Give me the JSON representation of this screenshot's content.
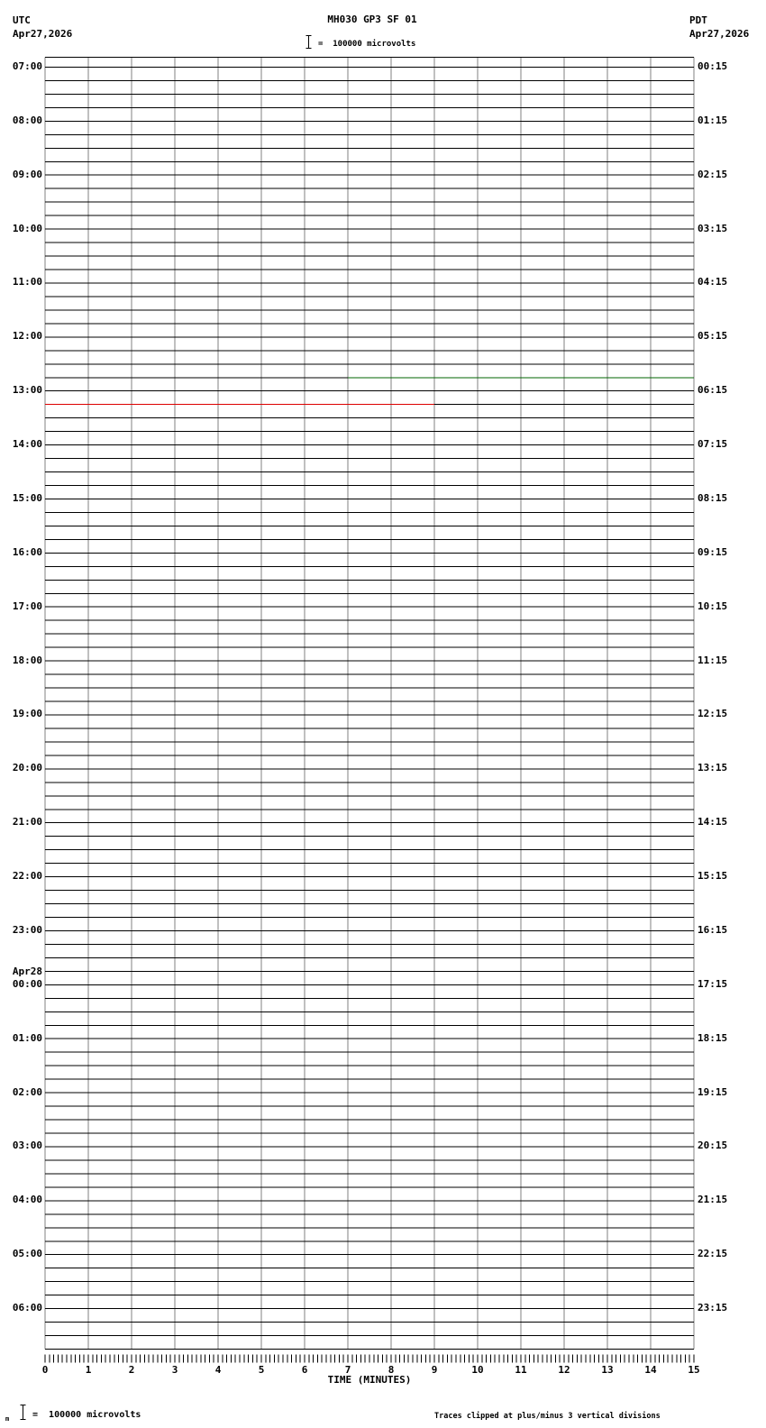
{
  "header": {
    "left_tz": "UTC",
    "left_date": "Apr27,2026",
    "title": "MH030 GP3 SF 01",
    "scale_text": "=  100000 microvolts",
    "right_tz": "PDT",
    "right_date": "Apr27,2026"
  },
  "footer": {
    "left_sub": "m",
    "left_text": "=  100000 microvolts",
    "right_text": "Traces clipped at plus/minus 3 vertical divisions"
  },
  "colors": {
    "background": "#ffffff",
    "grid_vertical": "#808080",
    "trace_black": "#000000",
    "segment_green": "#006400",
    "segment_red": "#dd0000"
  },
  "chart_data": {
    "type": "line",
    "subtype": "helicorder-webicorder",
    "title": "MH030 GP3 SF 01",
    "xlabel": "TIME (MINUTES)",
    "xlim": [
      0,
      15
    ],
    "x_ticks": [
      "0",
      "1",
      "2",
      "3",
      "4",
      "5",
      "6",
      "7",
      "8",
      "9",
      "10",
      "11",
      "12",
      "13",
      "14",
      "15"
    ],
    "minor_ticks_per_minute": 10,
    "minutes_per_row": 15,
    "num_rows": 96,
    "rows_per_hour": 4,
    "first_row_start_utc": "Apr27,2026 07:00",
    "last_row_start_utc": "Apr28,2026 06:45",
    "amplitude_scale": "1 vertical division = 100000 microvolts",
    "clipping_note": "Traces clipped at plus/minus 3 vertical divisions",
    "traces": "all 96 rows flat at baseline (no visible seismic activity)",
    "utc_labels": [
      {
        "text": "07:00"
      },
      {
        "text": "08:00"
      },
      {
        "text": "09:00"
      },
      {
        "text": "10:00"
      },
      {
        "text": "11:00"
      },
      {
        "text": "12:00"
      },
      {
        "text": "13:00"
      },
      {
        "text": "14:00"
      },
      {
        "text": "15:00"
      },
      {
        "text": "16:00"
      },
      {
        "text": "17:00"
      },
      {
        "text": "18:00"
      },
      {
        "text": "19:00"
      },
      {
        "text": "20:00"
      },
      {
        "text": "21:00"
      },
      {
        "text": "22:00"
      },
      {
        "text": "23:00"
      },
      {
        "text": "00:00",
        "prefix": "Apr28"
      },
      {
        "text": "01:00"
      },
      {
        "text": "02:00"
      },
      {
        "text": "03:00"
      },
      {
        "text": "04:00"
      },
      {
        "text": "05:00"
      },
      {
        "text": "06:00"
      }
    ],
    "pdt_labels": [
      "00:15",
      "01:15",
      "02:15",
      "03:15",
      "04:15",
      "05:15",
      "06:15",
      "07:15",
      "08:15",
      "09:15",
      "10:15",
      "11:15",
      "12:15",
      "13:15",
      "14:15",
      "15:15",
      "16:15",
      "17:15",
      "18:15",
      "19:15",
      "20:15",
      "21:15",
      "22:15",
      "23:15"
    ],
    "colored_segments": [
      {
        "row_index": 23,
        "row_start_utc": "12:45",
        "start_minute": 7,
        "end_minute": 15,
        "color": "#006400"
      },
      {
        "row_index": 25,
        "row_start_utc": "13:15",
        "start_minute": 0,
        "end_minute": 9,
        "color": "#dd0000"
      }
    ]
  }
}
